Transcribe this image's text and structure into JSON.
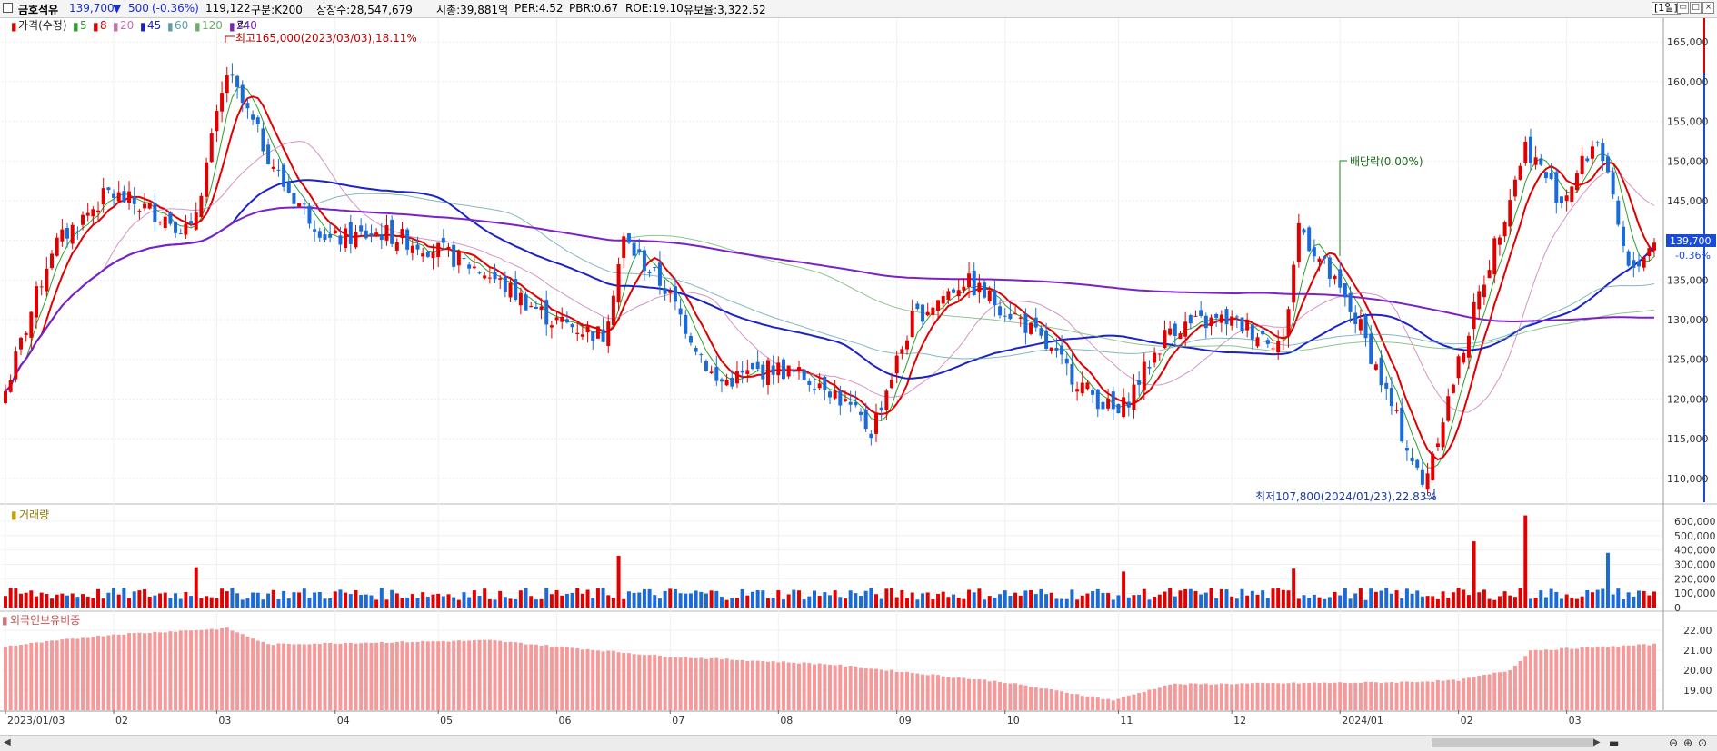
{
  "header": {
    "stock_name": "금호석유",
    "price": "139,700",
    "change_arrow": "▼",
    "change": "500",
    "change_pct": "(-0.36%)",
    "volume": "119,122",
    "market_label": "구분:K200",
    "listed_shares": "상장수:28,547,679",
    "market_cap": "시총:39,881억",
    "per": "PER:4.52",
    "pbr": "PBR:0.67",
    "roe": "ROE:19.10",
    "float_ratio": "유보율:3,322.52",
    "period_button": "[1일]"
  },
  "price_panel": {
    "legend": {
      "price_label": "가격(수정)",
      "ma": [
        {
          "label": "5",
          "color": "#2ca02c"
        },
        {
          "label": "8",
          "color": "#e00000"
        },
        {
          "label": "20",
          "color": "#c86fb0"
        },
        {
          "label": "45",
          "color": "#1a22c8"
        },
        {
          "label": "60",
          "color": "#5aa0a8"
        },
        {
          "label": "120",
          "color": "#6ab06a"
        },
        {
          "label": "240",
          "color": "#7a22c8"
        }
      ],
      "ex_label": "락"
    },
    "annotations": {
      "high": "최고165,000(2023/03/03),18.11%",
      "low": "최저107,800(2024/01/23),22.83%",
      "dividend": "배당락(0.00%)"
    },
    "current_price_tag": "139,700",
    "current_change_tag": "-0.36%"
  },
  "volume_panel": {
    "title": "거래량"
  },
  "foreign_panel": {
    "title": "외국인보유비중"
  },
  "colors": {
    "up": "#e00000",
    "down": "#1a6ad8",
    "foreign_bar": "#f59a9a"
  },
  "chart_data": [
    {
      "type": "candlestick",
      "title": "금호석유",
      "ylim": [
        107000,
        168000
      ],
      "y_ticks": [
        "165,000",
        "160,000",
        "155,000",
        "150,000",
        "145,000",
        "140,000",
        "135,000",
        "130,000",
        "125,000",
        "120,000",
        "115,000",
        "110,000"
      ],
      "x_tick_labels": [
        "2023/01/03",
        "02",
        "03",
        "04",
        "05",
        "06",
        "07",
        "08",
        "09",
        "10",
        "11",
        "12",
        "2024/01",
        "02",
        "03"
      ],
      "close_anchors": [
        {
          "date": "2023/01/03",
          "value": 121000
        },
        {
          "date": "2023/01/16",
          "value": 139000
        },
        {
          "date": "2023/01/31",
          "value": 146000
        },
        {
          "date": "2023/02/15",
          "value": 143000
        },
        {
          "date": "2023/02/22",
          "value": 141000
        },
        {
          "date": "2023/03/03",
          "value": 161000
        },
        {
          "date": "2023/03/20",
          "value": 147000
        },
        {
          "date": "2023/03/31",
          "value": 140000
        },
        {
          "date": "2023/04/14",
          "value": 141000
        },
        {
          "date": "2023/04/28",
          "value": 139000
        },
        {
          "date": "2023/05/12",
          "value": 136000
        },
        {
          "date": "2023/05/31",
          "value": 130000
        },
        {
          "date": "2023/06/14",
          "value": 128000
        },
        {
          "date": "2023/06/20",
          "value": 140000
        },
        {
          "date": "2023/06/30",
          "value": 134000
        },
        {
          "date": "2023/07/14",
          "value": 122000
        },
        {
          "date": "2023/07/31",
          "value": 124000
        },
        {
          "date": "2023/08/14",
          "value": 122000
        },
        {
          "date": "2023/08/25",
          "value": 116000
        },
        {
          "date": "2023/09/06",
          "value": 130000
        },
        {
          "date": "2023/09/20",
          "value": 135000
        },
        {
          "date": "2023/10/05",
          "value": 130000
        },
        {
          "date": "2023/10/24",
          "value": 121000
        },
        {
          "date": "2023/11/01",
          "value": 118000
        },
        {
          "date": "2023/11/15",
          "value": 129000
        },
        {
          "date": "2023/11/30",
          "value": 130000
        },
        {
          "date": "2023/12/15",
          "value": 127000
        },
        {
          "date": "2023/12/20",
          "value": 142000
        },
        {
          "date": "2024/01/05",
          "value": 129000
        },
        {
          "date": "2024/01/23",
          "value": 109000
        },
        {
          "date": "2024/02/06",
          "value": 131000
        },
        {
          "date": "2024/02/20",
          "value": 152000
        },
        {
          "date": "2024/02/29",
          "value": 145000
        },
        {
          "date": "2024/03/11",
          "value": 153000
        },
        {
          "date": "2024/03/19",
          "value": 136000
        },
        {
          "date": "2024/03/26",
          "value": 139700
        }
      ],
      "moving_averages": [
        {
          "name": "5",
          "color": "#2ca02c"
        },
        {
          "name": "8",
          "color": "#e00000"
        },
        {
          "name": "20",
          "color": "#c86fb0"
        },
        {
          "name": "45",
          "color": "#1a22c8"
        },
        {
          "name": "60",
          "color": "#5aa0a8"
        },
        {
          "name": "120",
          "color": "#6ab06a"
        },
        {
          "name": "240",
          "color": "#7a22c8"
        }
      ]
    },
    {
      "type": "bar",
      "title": "거래량",
      "ylim": [
        0,
        650000
      ],
      "y_ticks": [
        "600,000",
        "500,000",
        "400,000",
        "300,000",
        "200,000",
        "100,000",
        "0"
      ],
      "typical": 95000,
      "spikes": [
        {
          "date": "2023/02/23",
          "value": 280000
        },
        {
          "date": "2023/06/19",
          "value": 360000
        },
        {
          "date": "2023/11/02",
          "value": 250000
        },
        {
          "date": "2023/12/19",
          "value": 270000
        },
        {
          "date": "2024/02/06",
          "value": 460000
        },
        {
          "date": "2024/02/20",
          "value": 640000
        },
        {
          "date": "2024/03/13",
          "value": 380000
        }
      ]
    },
    {
      "type": "bar",
      "title": "외국인보유비중",
      "ylim": [
        18.0,
        22.6
      ],
      "y_ticks": [
        "22.00",
        "21.00",
        "20.00",
        "19.00"
      ],
      "anchors": [
        {
          "date": "2023/01/03",
          "value": 21.2
        },
        {
          "date": "2023/02/01",
          "value": 21.8
        },
        {
          "date": "2023/03/03",
          "value": 22.1
        },
        {
          "date": "2023/03/15",
          "value": 21.3
        },
        {
          "date": "2023/05/15",
          "value": 21.5
        },
        {
          "date": "2023/07/01",
          "value": 20.7
        },
        {
          "date": "2023/08/15",
          "value": 20.3
        },
        {
          "date": "2023/10/01",
          "value": 19.4
        },
        {
          "date": "2023/10/31",
          "value": 18.5
        },
        {
          "date": "2023/11/15",
          "value": 19.3
        },
        {
          "date": "2024/01/15",
          "value": 19.4
        },
        {
          "date": "2024/02/01",
          "value": 19.5
        },
        {
          "date": "2024/02/15",
          "value": 20.0
        },
        {
          "date": "2024/02/21",
          "value": 21.0
        },
        {
          "date": "2024/03/26",
          "value": 21.3
        }
      ]
    }
  ]
}
